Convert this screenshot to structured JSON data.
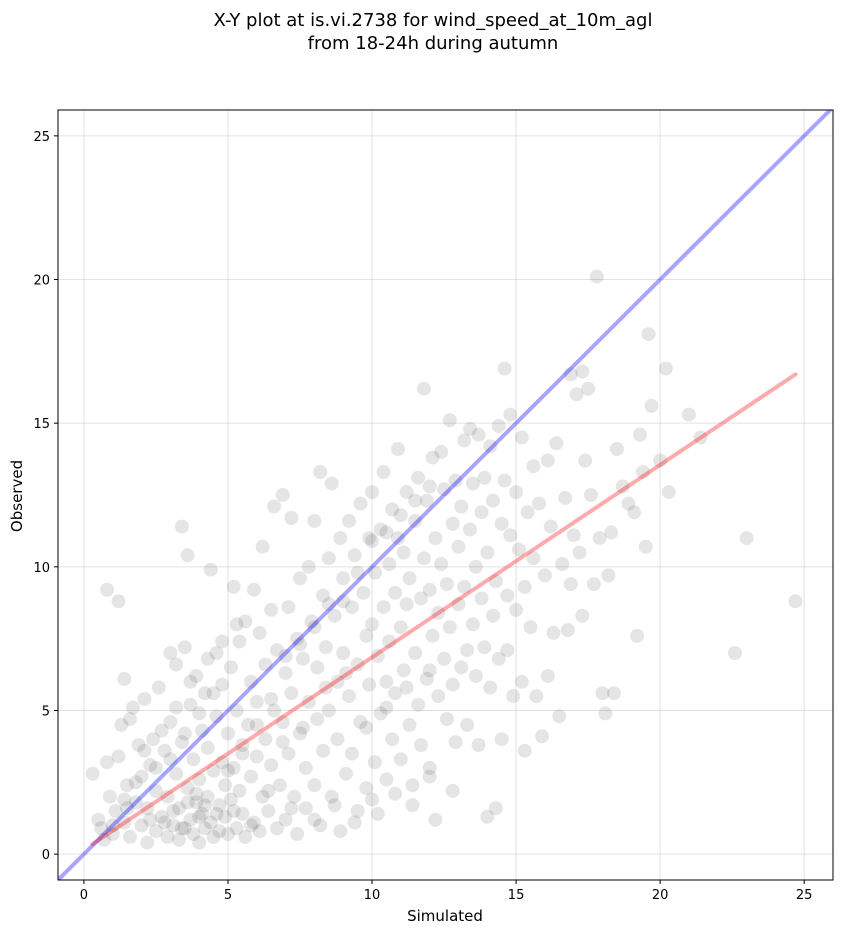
{
  "chart_data": {
    "type": "scatter",
    "title_line1": "X-Y plot at is.vi.2738 for wind_speed_at_10m_agl",
    "title_line2": "from 18-24h during autumn",
    "xlabel": "Simulated",
    "ylabel": "Observed",
    "xlim": [
      -0.9,
      26.0
    ],
    "ylim": [
      -0.9,
      25.9
    ],
    "xticks": [
      0,
      5,
      10,
      15,
      20,
      25
    ],
    "yticks": [
      0,
      5,
      10,
      15,
      20,
      25
    ],
    "grid": true,
    "point_color": "#000000",
    "point_alpha": 0.1,
    "points": [
      [
        0.3,
        2.8
      ],
      [
        0.5,
        1.2
      ],
      [
        0.6,
        0.9
      ],
      [
        0.7,
        0.5
      ],
      [
        0.8,
        9.2
      ],
      [
        0.8,
        3.2
      ],
      [
        0.9,
        2.0
      ],
      [
        1.0,
        0.7
      ],
      [
        1.1,
        1.5
      ],
      [
        1.2,
        8.8
      ],
      [
        1.2,
        3.4
      ],
      [
        1.3,
        4.5
      ],
      [
        1.4,
        6.1
      ],
      [
        1.4,
        1.1
      ],
      [
        1.5,
        2.4
      ],
      [
        1.6,
        0.6
      ],
      [
        1.6,
        4.7
      ],
      [
        1.7,
        5.1
      ],
      [
        1.8,
        1.8
      ],
      [
        1.9,
        3.8
      ],
      [
        2.0,
        1.0
      ],
      [
        2.0,
        2.7
      ],
      [
        2.1,
        5.4
      ],
      [
        2.2,
        0.4
      ],
      [
        2.2,
        1.6
      ],
      [
        2.3,
        3.1
      ],
      [
        2.4,
        4.0
      ],
      [
        2.5,
        0.8
      ],
      [
        2.5,
        2.2
      ],
      [
        2.6,
        5.8
      ],
      [
        2.7,
        1.3
      ],
      [
        2.8,
        3.6
      ],
      [
        2.9,
        0.6
      ],
      [
        2.9,
        2.0
      ],
      [
        3.0,
        4.6
      ],
      [
        3.0,
        7.0
      ],
      [
        3.1,
        1.0
      ],
      [
        3.2,
        6.6
      ],
      [
        3.2,
        2.8
      ],
      [
        3.3,
        0.5
      ],
      [
        3.3,
        1.6
      ],
      [
        3.4,
        11.4
      ],
      [
        3.4,
        3.9
      ],
      [
        3.5,
        7.2
      ],
      [
        3.5,
        0.9
      ],
      [
        3.6,
        2.3
      ],
      [
        3.6,
        10.4
      ],
      [
        3.7,
        1.2
      ],
      [
        3.7,
        5.2
      ],
      [
        3.8,
        0.7
      ],
      [
        3.8,
        3.3
      ],
      [
        3.9,
        1.8
      ],
      [
        3.9,
        6.2
      ],
      [
        4.0,
        0.4
      ],
      [
        4.0,
        2.6
      ],
      [
        4.1,
        4.3
      ],
      [
        4.1,
        1.4
      ],
      [
        4.2,
        0.9
      ],
      [
        4.2,
        5.6
      ],
      [
        4.3,
        2.0
      ],
      [
        4.3,
        3.7
      ],
      [
        4.4,
        1.1
      ],
      [
        4.4,
        9.9
      ],
      [
        4.5,
        0.6
      ],
      [
        4.5,
        2.9
      ],
      [
        4.6,
        7.0
      ],
      [
        4.6,
        4.8
      ],
      [
        4.7,
        1.7
      ],
      [
        4.7,
        0.8
      ],
      [
        4.8,
        3.2
      ],
      [
        4.8,
        5.9
      ],
      [
        4.9,
        1.3
      ],
      [
        4.9,
        2.4
      ],
      [
        5.0,
        0.7
      ],
      [
        5.0,
        4.2
      ],
      [
        5.1,
        6.5
      ],
      [
        5.1,
        1.9
      ],
      [
        5.2,
        9.3
      ],
      [
        5.2,
        3.0
      ],
      [
        5.3,
        0.9
      ],
      [
        5.3,
        5.0
      ],
      [
        5.4,
        2.2
      ],
      [
        5.4,
        7.4
      ],
      [
        5.5,
        1.4
      ],
      [
        5.5,
        3.8
      ],
      [
        5.6,
        0.6
      ],
      [
        5.6,
        8.1
      ],
      [
        5.7,
        4.5
      ],
      [
        5.8,
        2.7
      ],
      [
        5.8,
        6.0
      ],
      [
        5.9,
        1.1
      ],
      [
        5.9,
        9.2
      ],
      [
        6.0,
        3.4
      ],
      [
        6.0,
        5.3
      ],
      [
        6.1,
        0.8
      ],
      [
        6.1,
        7.7
      ],
      [
        6.2,
        2.0
      ],
      [
        6.2,
        10.7
      ],
      [
        6.3,
        4.0
      ],
      [
        6.3,
        6.6
      ],
      [
        6.4,
        1.5
      ],
      [
        6.5,
        8.5
      ],
      [
        6.5,
        3.1
      ],
      [
        6.6,
        12.1
      ],
      [
        6.6,
        5.0
      ],
      [
        6.7,
        0.9
      ],
      [
        6.7,
        7.1
      ],
      [
        6.8,
        2.4
      ],
      [
        6.9,
        12.5
      ],
      [
        6.9,
        4.6
      ],
      [
        7.0,
        6.3
      ],
      [
        7.0,
        1.2
      ],
      [
        7.1,
        8.6
      ],
      [
        7.1,
        3.5
      ],
      [
        7.2,
        11.7
      ],
      [
        7.2,
        5.6
      ],
      [
        7.3,
        2.0
      ],
      [
        7.4,
        7.5
      ],
      [
        7.4,
        0.7
      ],
      [
        7.5,
        9.6
      ],
      [
        7.5,
        4.2
      ],
      [
        7.6,
        6.8
      ],
      [
        7.7,
        1.6
      ],
      [
        7.7,
        3.0
      ],
      [
        7.8,
        10.0
      ],
      [
        7.8,
        5.3
      ],
      [
        7.9,
        8.1
      ],
      [
        8.0,
        2.4
      ],
      [
        8.0,
        11.6
      ],
      [
        8.1,
        4.7
      ],
      [
        8.1,
        6.5
      ],
      [
        8.2,
        1.0
      ],
      [
        8.2,
        13.3
      ],
      [
        8.3,
        9.0
      ],
      [
        8.3,
        3.6
      ],
      [
        8.4,
        7.2
      ],
      [
        8.5,
        10.3
      ],
      [
        8.5,
        5.0
      ],
      [
        8.6,
        12.9
      ],
      [
        8.6,
        2.0
      ],
      [
        8.7,
        8.3
      ],
      [
        8.8,
        6.0
      ],
      [
        8.8,
        4.0
      ],
      [
        8.9,
        11.0
      ],
      [
        8.9,
        0.8
      ],
      [
        9.0,
        9.6
      ],
      [
        9.0,
        7.0
      ],
      [
        9.1,
        2.8
      ],
      [
        9.2,
        11.6
      ],
      [
        9.2,
        5.5
      ],
      [
        9.3,
        8.6
      ],
      [
        9.3,
        3.5
      ],
      [
        9.4,
        10.4
      ],
      [
        9.5,
        6.6
      ],
      [
        9.5,
        1.5
      ],
      [
        9.6,
        12.2
      ],
      [
        9.6,
        4.6
      ],
      [
        9.7,
        9.1
      ],
      [
        9.8,
        7.6
      ],
      [
        9.8,
        2.3
      ],
      [
        9.9,
        11.0
      ],
      [
        9.9,
        5.9
      ],
      [
        10.0,
        12.6
      ],
      [
        10.0,
        8.0
      ],
      [
        10.1,
        3.2
      ],
      [
        10.1,
        9.8
      ],
      [
        10.2,
        6.9
      ],
      [
        10.2,
        1.4
      ],
      [
        10.3,
        11.3
      ],
      [
        10.3,
        4.9
      ],
      [
        10.4,
        13.3
      ],
      [
        10.4,
        8.6
      ],
      [
        10.5,
        6.0
      ],
      [
        10.5,
        2.6
      ],
      [
        10.6,
        10.1
      ],
      [
        10.6,
        7.4
      ],
      [
        10.7,
        12.0
      ],
      [
        10.7,
        4.0
      ],
      [
        10.8,
        9.1
      ],
      [
        10.8,
        5.6
      ],
      [
        10.9,
        14.1
      ],
      [
        10.9,
        11.0
      ],
      [
        11.0,
        7.9
      ],
      [
        11.0,
        3.3
      ],
      [
        11.1,
        10.5
      ],
      [
        11.1,
        6.4
      ],
      [
        11.2,
        12.6
      ],
      [
        11.2,
        8.7
      ],
      [
        11.3,
        4.5
      ],
      [
        11.3,
        9.6
      ],
      [
        11.4,
        1.7
      ],
      [
        11.5,
        11.6
      ],
      [
        11.5,
        7.0
      ],
      [
        11.6,
        5.2
      ],
      [
        11.6,
        13.1
      ],
      [
        11.7,
        8.9
      ],
      [
        11.7,
        3.8
      ],
      [
        11.8,
        16.2
      ],
      [
        11.8,
        10.3
      ],
      [
        11.9,
        6.1
      ],
      [
        11.9,
        12.3
      ],
      [
        12.0,
        9.2
      ],
      [
        12.0,
        2.7
      ],
      [
        12.1,
        13.8
      ],
      [
        12.1,
        7.6
      ],
      [
        12.2,
        1.2
      ],
      [
        12.2,
        11.0
      ],
      [
        12.3,
        5.5
      ],
      [
        12.3,
        8.4
      ],
      [
        12.4,
        14.0
      ],
      [
        12.4,
        10.1
      ],
      [
        12.5,
        6.8
      ],
      [
        12.5,
        12.7
      ],
      [
        12.6,
        4.7
      ],
      [
        12.6,
        9.4
      ],
      [
        12.7,
        15.1
      ],
      [
        12.7,
        7.9
      ],
      [
        12.8,
        11.5
      ],
      [
        12.8,
        5.9
      ],
      [
        12.9,
        13.0
      ],
      [
        12.9,
        3.9
      ],
      [
        13.0,
        8.7
      ],
      [
        13.0,
        10.7
      ],
      [
        13.1,
        6.5
      ],
      [
        13.1,
        12.1
      ],
      [
        13.2,
        14.4
      ],
      [
        13.2,
        9.3
      ],
      [
        13.3,
        7.1
      ],
      [
        13.3,
        4.5
      ],
      [
        13.4,
        11.3
      ],
      [
        13.4,
        14.8
      ],
      [
        13.5,
        8.0
      ],
      [
        13.5,
        12.9
      ],
      [
        13.6,
        6.2
      ],
      [
        13.6,
        10.0
      ],
      [
        13.7,
        14.6
      ],
      [
        13.7,
        3.8
      ],
      [
        13.8,
        11.9
      ],
      [
        13.8,
        8.9
      ],
      [
        13.9,
        7.2
      ],
      [
        13.9,
        13.1
      ],
      [
        14.0,
        1.3
      ],
      [
        14.0,
        10.5
      ],
      [
        14.1,
        5.8
      ],
      [
        14.1,
        14.2
      ],
      [
        14.2,
        8.3
      ],
      [
        14.2,
        12.3
      ],
      [
        14.3,
        1.6
      ],
      [
        14.3,
        9.5
      ],
      [
        14.4,
        14.9
      ],
      [
        14.4,
        6.8
      ],
      [
        14.5,
        11.5
      ],
      [
        14.5,
        4.0
      ],
      [
        14.6,
        16.9
      ],
      [
        14.6,
        13.0
      ],
      [
        14.7,
        9.0
      ],
      [
        14.7,
        7.1
      ],
      [
        14.8,
        15.3
      ],
      [
        14.8,
        11.1
      ],
      [
        14.9,
        5.5
      ],
      [
        15.0,
        12.6
      ],
      [
        15.0,
        8.5
      ],
      [
        15.1,
        10.6
      ],
      [
        15.2,
        14.5
      ],
      [
        15.2,
        6.0
      ],
      [
        15.3,
        9.3
      ],
      [
        15.3,
        3.6
      ],
      [
        15.4,
        11.9
      ],
      [
        15.5,
        7.9
      ],
      [
        15.6,
        13.5
      ],
      [
        15.6,
        10.3
      ],
      [
        15.7,
        5.5
      ],
      [
        15.8,
        12.2
      ],
      [
        15.9,
        4.1
      ],
      [
        16.0,
        9.7
      ],
      [
        16.1,
        6.2
      ],
      [
        16.1,
        13.7
      ],
      [
        16.2,
        11.4
      ],
      [
        16.3,
        7.7
      ],
      [
        16.4,
        14.3
      ],
      [
        16.5,
        4.8
      ],
      [
        16.6,
        10.1
      ],
      [
        16.7,
        12.4
      ],
      [
        16.8,
        7.8
      ],
      [
        16.9,
        16.7
      ],
      [
        16.9,
        9.4
      ],
      [
        17.0,
        11.1
      ],
      [
        17.1,
        16.0
      ],
      [
        17.2,
        10.5
      ],
      [
        17.3,
        16.8
      ],
      [
        17.3,
        8.3
      ],
      [
        17.4,
        13.7
      ],
      [
        17.5,
        16.2
      ],
      [
        17.6,
        12.5
      ],
      [
        17.7,
        9.4
      ],
      [
        17.8,
        20.1
      ],
      [
        17.9,
        11.0
      ],
      [
        18.0,
        5.6
      ],
      [
        18.1,
        4.9
      ],
      [
        18.2,
        9.7
      ],
      [
        18.3,
        11.2
      ],
      [
        18.4,
        5.6
      ],
      [
        18.5,
        14.1
      ],
      [
        18.7,
        12.8
      ],
      [
        18.9,
        12.2
      ],
      [
        19.1,
        11.9
      ],
      [
        19.2,
        7.6
      ],
      [
        19.3,
        14.6
      ],
      [
        19.4,
        13.3
      ],
      [
        19.5,
        10.7
      ],
      [
        19.6,
        18.1
      ],
      [
        19.7,
        15.6
      ],
      [
        20.0,
        13.7
      ],
      [
        20.2,
        16.9
      ],
      [
        20.3,
        12.6
      ],
      [
        21.0,
        15.3
      ],
      [
        21.4,
        14.5
      ],
      [
        22.6,
        7.0
      ],
      [
        23.0,
        11.0
      ],
      [
        24.7,
        8.8
      ],
      [
        1.5,
        1.6
      ],
      [
        2.3,
        1.2
      ],
      [
        3.1,
        1.5
      ],
      [
        3.6,
        1.8
      ],
      [
        4.0,
        1.3
      ],
      [
        4.2,
        1.7
      ],
      [
        3.4,
        0.9
      ],
      [
        2.8,
        1.1
      ],
      [
        3.9,
        2.1
      ],
      [
        4.6,
        1.4
      ],
      [
        5.2,
        1.5
      ],
      [
        5.8,
        1.0
      ],
      [
        6.4,
        2.2
      ],
      [
        7.2,
        1.6
      ],
      [
        8.0,
        1.2
      ],
      [
        8.7,
        1.7
      ],
      [
        9.4,
        1.1
      ],
      [
        10.0,
        1.9
      ],
      [
        10.8,
        2.1
      ],
      [
        11.4,
        2.4
      ],
      [
        12.0,
        3.0
      ],
      [
        12.8,
        2.2
      ],
      [
        6.9,
        3.9
      ],
      [
        7.6,
        4.4
      ],
      [
        8.4,
        5.8
      ],
      [
        9.1,
        6.3
      ],
      [
        9.8,
        4.4
      ],
      [
        10.5,
        5.1
      ],
      [
        11.2,
        5.8
      ],
      [
        12.0,
        6.4
      ],
      [
        5.0,
        2.9
      ],
      [
        5.5,
        3.5
      ],
      [
        6.0,
        4.5
      ],
      [
        6.5,
        5.4
      ],
      [
        7.0,
        6.9
      ],
      [
        7.5,
        7.3
      ],
      [
        8.0,
        7.9
      ],
      [
        8.5,
        8.7
      ],
      [
        9.0,
        8.8
      ],
      [
        9.5,
        9.8
      ],
      [
        10.0,
        10.9
      ],
      [
        10.5,
        11.2
      ],
      [
        11.0,
        11.8
      ],
      [
        11.5,
        12.3
      ],
      [
        12.0,
        12.8
      ],
      [
        2.5,
        3.0
      ],
      [
        3.0,
        3.3
      ],
      [
        3.5,
        4.2
      ],
      [
        4.0,
        4.9
      ],
      [
        4.5,
        5.6
      ],
      [
        1.0,
        1.0
      ],
      [
        1.4,
        1.9
      ],
      [
        1.8,
        2.5
      ],
      [
        2.1,
        3.6
      ],
      [
        2.7,
        4.3
      ],
      [
        3.2,
        5.1
      ],
      [
        3.7,
        6.0
      ],
      [
        4.3,
        6.8
      ],
      [
        4.8,
        7.4
      ],
      [
        5.3,
        8.0
      ]
    ],
    "lines": [
      {
        "color": "#0000ff",
        "alpha": 0.35,
        "x": [
          -0.9,
          26.0
        ],
        "y": [
          -0.9,
          26.0
        ]
      },
      {
        "color": "#ff0000",
        "alpha": 0.33,
        "x": [
          0.3,
          24.7
        ],
        "y": [
          0.35,
          16.7
        ]
      }
    ]
  }
}
